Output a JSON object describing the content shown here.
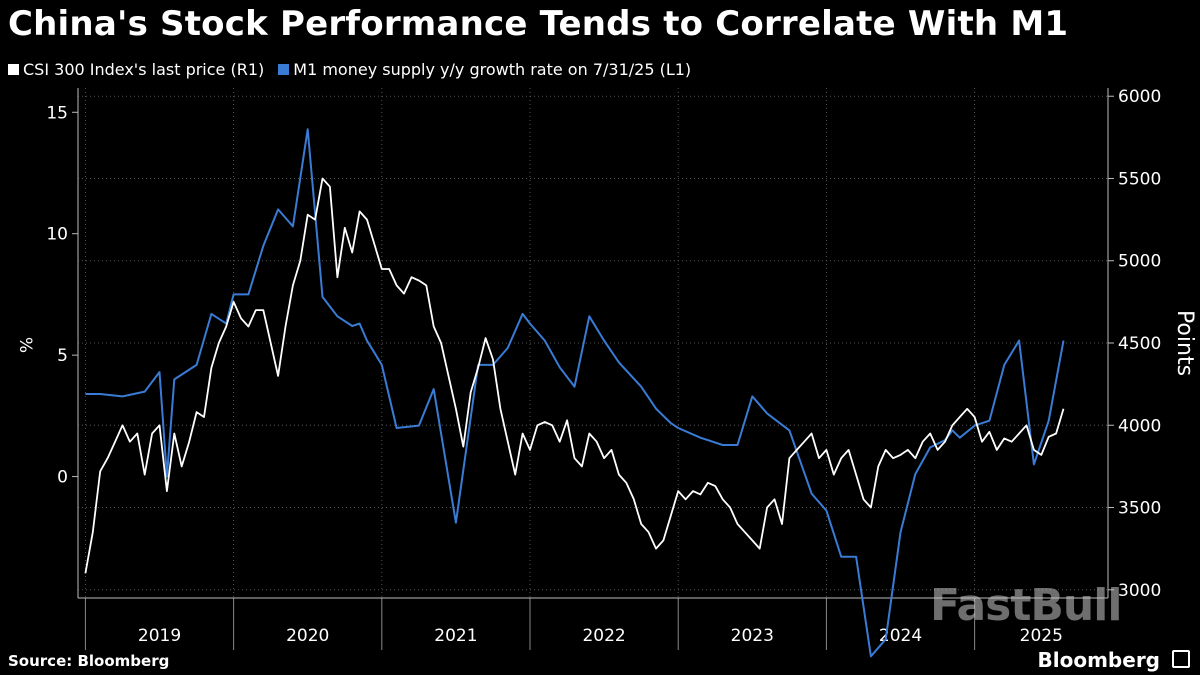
{
  "title": "China's Stock Performance Tends to Correlate With M1",
  "legend": [
    {
      "label": "CSI 300 Index's last price (R1)",
      "color": "#ffffff"
    },
    {
      "label": "M1 money supply y/y growth rate on 7/31/25 (L1)",
      "color": "#3a7bd5"
    }
  ],
  "source": "Source: Bloomberg",
  "brand": "Bloomberg",
  "watermark": "FastBull",
  "chart_data": {
    "type": "line",
    "title": "China's Stock Performance Tends to Correlate With M1",
    "left_axis": {
      "label": "%",
      "ticks": [
        0,
        5,
        10,
        15
      ],
      "range": [
        -5,
        16
      ]
    },
    "right_axis": {
      "label": "Points",
      "ticks": [
        3000,
        3500,
        4000,
        4500,
        5000,
        5500,
        6000
      ],
      "range": [
        2950,
        6050
      ]
    },
    "x_axis": {
      "range": [
        2018.95,
        2025.9
      ],
      "year_labels": [
        "2019",
        "2020",
        "2021",
        "2022",
        "2023",
        "2024",
        "2025"
      ]
    },
    "series": [
      {
        "name": "M1 money supply y/y growth rate on 7/31/25 (L1)",
        "axis": "left",
        "color": "#3a7bd5",
        "x": [
          2019.0,
          2019.1,
          2019.25,
          2019.4,
          2019.5,
          2019.55,
          2019.6,
          2019.75,
          2019.85,
          2019.95,
          2020.0,
          2020.1,
          2020.2,
          2020.3,
          2020.4,
          2020.5,
          2020.6,
          2020.7,
          2020.8,
          2020.85,
          2020.9,
          2020.95,
          2021.0,
          2021.1,
          2021.25,
          2021.35,
          2021.5,
          2021.65,
          2021.75,
          2021.85,
          2021.95,
          2022.0,
          2022.1,
          2022.2,
          2022.3,
          2022.4,
          2022.5,
          2022.6,
          2022.75,
          2022.85,
          2022.95,
          2023.0,
          2023.15,
          2023.3,
          2023.4,
          2023.5,
          2023.6,
          2023.75,
          2023.9,
          2024.0,
          2024.1,
          2024.2,
          2024.3,
          2024.4,
          2024.5,
          2024.6,
          2024.7,
          2024.8,
          2024.85,
          2024.9,
          2025.0,
          2025.1,
          2025.2,
          2025.3,
          2025.4,
          2025.5,
          2025.6
        ],
        "values": [
          3.4,
          3.4,
          3.3,
          3.5,
          4.3,
          0.0,
          4.0,
          4.6,
          6.7,
          6.3,
          7.5,
          7.5,
          9.5,
          11.0,
          10.3,
          14.3,
          7.4,
          6.6,
          6.2,
          6.3,
          5.6,
          5.1,
          4.6,
          2.0,
          2.1,
          3.6,
          -1.9,
          4.6,
          4.6,
          5.3,
          6.7,
          6.3,
          5.6,
          4.5,
          3.7,
          6.6,
          5.6,
          4.7,
          3.7,
          2.8,
          2.2,
          2.0,
          1.6,
          1.3,
          1.3,
          3.3,
          2.6,
          1.9,
          -0.7,
          -1.4,
          -3.3,
          -3.3,
          -7.4,
          -6.7,
          -2.3,
          0.1,
          1.2,
          1.5,
          1.9,
          1.6,
          2.1,
          2.3,
          4.6,
          5.6,
          0.5,
          2.3,
          5.6
        ]
      },
      {
        "name": "CSI 300 Index's last price (R1)",
        "axis": "right",
        "color": "#ffffff",
        "x": [
          2019.0,
          2019.05,
          2019.1,
          2019.15,
          2019.2,
          2019.25,
          2019.3,
          2019.35,
          2019.4,
          2019.45,
          2019.5,
          2019.55,
          2019.6,
          2019.65,
          2019.7,
          2019.75,
          2019.8,
          2019.85,
          2019.9,
          2019.95,
          2020.0,
          2020.05,
          2020.1,
          2020.15,
          2020.2,
          2020.25,
          2020.3,
          2020.35,
          2020.4,
          2020.45,
          2020.5,
          2020.55,
          2020.6,
          2020.65,
          2020.7,
          2020.75,
          2020.8,
          2020.85,
          2020.9,
          2020.95,
          2021.0,
          2021.05,
          2021.1,
          2021.15,
          2021.2,
          2021.25,
          2021.3,
          2021.35,
          2021.4,
          2021.45,
          2021.5,
          2021.55,
          2021.6,
          2021.65,
          2021.7,
          2021.75,
          2021.8,
          2021.85,
          2021.9,
          2021.95,
          2022.0,
          2022.05,
          2022.1,
          2022.15,
          2022.2,
          2022.25,
          2022.3,
          2022.35,
          2022.4,
          2022.45,
          2022.5,
          2022.55,
          2022.6,
          2022.65,
          2022.7,
          2022.75,
          2022.8,
          2022.85,
          2022.9,
          2022.95,
          2023.0,
          2023.05,
          2023.1,
          2023.15,
          2023.2,
          2023.25,
          2023.3,
          2023.35,
          2023.4,
          2023.45,
          2023.5,
          2023.55,
          2023.6,
          2023.65,
          2023.7,
          2023.75,
          2023.8,
          2023.85,
          2023.9,
          2023.95,
          2024.0,
          2024.05,
          2024.1,
          2024.15,
          2024.2,
          2024.25,
          2024.3,
          2024.35,
          2024.4,
          2024.45,
          2024.5,
          2024.55,
          2024.6,
          2024.65,
          2024.7,
          2024.75,
          2024.8,
          2024.85,
          2024.9,
          2024.95,
          2025.0,
          2025.05,
          2025.1,
          2025.15,
          2025.2,
          2025.25,
          2025.3,
          2025.35,
          2025.4,
          2025.45,
          2025.5,
          2025.55,
          2025.6
        ],
        "values": [
          3100,
          3350,
          3720,
          3800,
          3900,
          4000,
          3900,
          3950,
          3700,
          3950,
          4000,
          3600,
          3950,
          3750,
          3900,
          4080,
          4050,
          4350,
          4500,
          4600,
          4750,
          4650,
          4600,
          4700,
          4700,
          4500,
          4300,
          4600,
          4850,
          5000,
          5280,
          5250,
          5500,
          5450,
          4900,
          5200,
          5050,
          5300,
          5250,
          5100,
          4950,
          4950,
          4850,
          4800,
          4900,
          4880,
          4850,
          4600,
          4500,
          4300,
          4100,
          3870,
          4200,
          4350,
          4530,
          4400,
          4100,
          3900,
          3700,
          3950,
          3850,
          4000,
          4020,
          4000,
          3900,
          4030,
          3800,
          3750,
          3950,
          3900,
          3800,
          3850,
          3700,
          3650,
          3550,
          3400,
          3350,
          3250,
          3300,
          3450,
          3600,
          3550,
          3600,
          3580,
          3650,
          3630,
          3550,
          3500,
          3400,
          3350,
          3300,
          3250,
          3500,
          3550,
          3400,
          3800,
          3850,
          3900,
          3950,
          3800,
          3850,
          3700,
          3800,
          3850,
          3700,
          3550,
          3500,
          3750,
          3850,
          3800,
          3820,
          3850,
          3800,
          3900,
          3950,
          3850,
          3900,
          4000,
          4050,
          4100,
          4050,
          3900,
          3960,
          3850,
          3920,
          3900,
          3950,
          4000,
          3850,
          3820,
          3930,
          3950,
          4100
        ]
      }
    ]
  }
}
